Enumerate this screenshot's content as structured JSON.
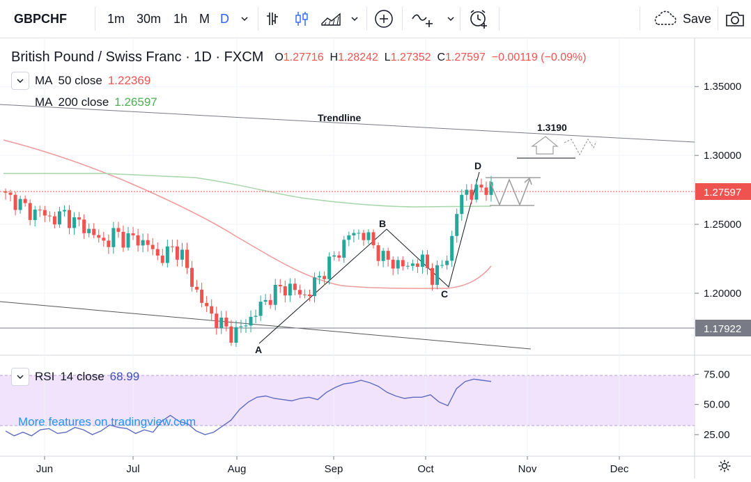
{
  "toolbar": {
    "symbol": "GBPCHF",
    "intervals": [
      "1m",
      "30m",
      "1h",
      "M",
      "D"
    ],
    "active_interval": "D",
    "save_label": "Save"
  },
  "header": {
    "title": "British Pound / Swiss Franc · 1D · FXCM",
    "ohlc": {
      "o_label": "O",
      "o": "1.27716",
      "h_label": "H",
      "h": "1.28242",
      "l_label": "L",
      "l": "1.27352",
      "c_label": "C",
      "c": "1.27597",
      "change": "−0.00119 (−0.09%)"
    }
  },
  "indicators": {
    "ma50": {
      "name": "MA",
      "params": "50 close",
      "value": "1.22369",
      "color": "#ef5350"
    },
    "ma200": {
      "name": "MA",
      "params": "200 close",
      "value": "1.26597",
      "color": "#4caf50"
    },
    "rsi": {
      "name": "RSI",
      "params": "14 close",
      "value": "68.99",
      "color": "#7e57c2"
    }
  },
  "watermark": "More features on tradingview.com",
  "chart_data": [
    {
      "type": "candlestick",
      "symbol": "GBPCHF",
      "x_ticks": [
        "Jun",
        "Jul",
        "Aug",
        "Sep",
        "Oct",
        "Nov",
        "Dec"
      ],
      "y_ticks": [
        "1.35000",
        "1.30000",
        "1.25000",
        "1.20000"
      ],
      "ylim": [
        1.155,
        1.385
      ],
      "last_price": "1.27597",
      "level_line": "1.17922",
      "colors": {
        "up": "#26a69a",
        "down": "#ef5350"
      },
      "close_path": [
        1.27,
        1.268,
        1.264,
        1.258,
        1.26,
        1.255,
        1.254,
        1.258,
        1.252,
        1.25,
        1.245,
        1.24,
        1.236,
        1.244,
        1.24,
        1.24,
        1.238,
        1.236,
        1.226,
        1.228,
        1.232,
        1.23,
        1.21,
        1.2,
        1.188,
        1.182,
        1.176,
        1.17,
        1.174,
        1.18,
        1.187,
        1.194,
        1.2,
        1.204,
        1.204,
        1.2,
        1.198,
        1.208,
        1.216,
        1.224,
        1.232,
        1.242,
        1.244,
        1.242,
        1.234,
        1.226,
        1.222,
        1.222,
        1.218,
        1.224,
        1.222,
        1.212,
        1.218,
        1.23,
        1.262,
        1.276,
        1.271,
        1.278,
        1.276
      ],
      "annotations": [
        "Trendline",
        "1.3190",
        "A",
        "B",
        "C",
        "D"
      ],
      "pattern_points": {
        "A": 1.17,
        "B": 1.249,
        "C": 1.21,
        "D": 1.287
      }
    },
    {
      "type": "line",
      "name": "RSI 14 close",
      "y_ticks": [
        "75.00",
        "50.00",
        "25.00"
      ],
      "ylim": [
        10,
        85
      ],
      "band": [
        30,
        70
      ],
      "values": [
        28,
        24,
        27,
        24,
        29,
        30,
        26,
        27,
        31,
        29,
        25,
        28,
        33,
        31,
        30,
        26,
        29,
        27,
        36,
        41,
        36,
        34,
        28,
        25,
        27,
        32,
        37,
        46,
        52,
        56,
        57,
        55,
        54,
        53,
        55,
        56,
        54,
        60,
        64,
        67,
        68,
        70,
        68,
        65,
        60,
        57,
        55,
        56,
        56,
        58,
        52,
        49,
        63,
        69,
        71,
        70,
        69
      ]
    }
  ]
}
